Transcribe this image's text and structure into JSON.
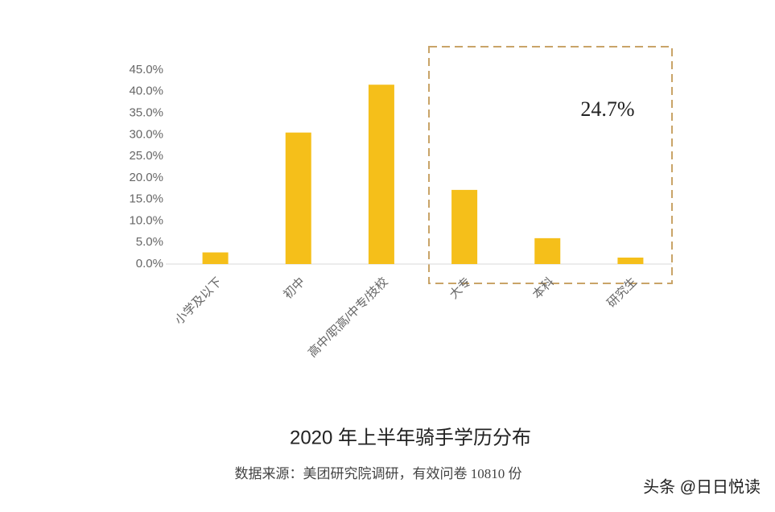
{
  "chart_data": {
    "type": "bar",
    "title": "2020 年上半年骑手学历分布",
    "source": "数据来源：美团研究院调研，有效问卷 10810 份",
    "annotation": "24.7%",
    "watermark": "头条 @日日悦读",
    "categories": [
      "小学及以下",
      "初中",
      "高中/职高/中专/技校",
      "大专",
      "本科",
      "研究生"
    ],
    "values": [
      2.7,
      30.5,
      41.6,
      17.2,
      6.0,
      1.5
    ],
    "color": "#f5bf1a",
    "ylim": [
      0,
      45
    ],
    "yticks": [
      {
        "value": 0,
        "label": "0.0%"
      },
      {
        "value": 5,
        "label": "5.0%"
      },
      {
        "value": 10,
        "label": "10.0%"
      },
      {
        "value": 15,
        "label": "15.0%"
      },
      {
        "value": 20,
        "label": "20.0%"
      },
      {
        "value": 25,
        "label": "25.0%"
      },
      {
        "value": 30,
        "label": "30.0%"
      },
      {
        "value": 35,
        "label": "35.0%"
      },
      {
        "value": 40,
        "label": "40.0%"
      },
      {
        "value": 45,
        "label": "45.0%"
      }
    ],
    "grid": false
  }
}
